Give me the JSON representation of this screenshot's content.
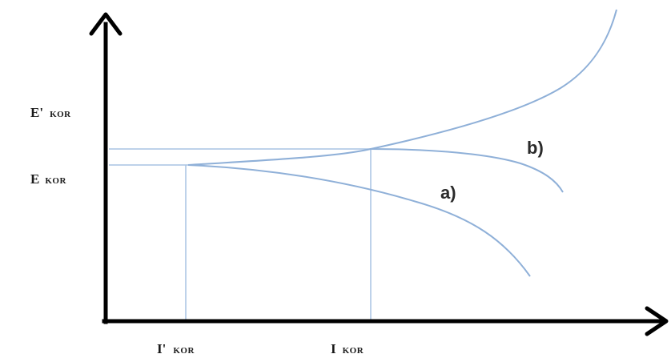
{
  "labels": {
    "e_kor_prime": {
      "main": "E'",
      "sub": "KOR"
    },
    "e_kor": {
      "main": "E",
      "sub": "KOR"
    },
    "i_kor_prime": {
      "main": "I'",
      "sub": "KOR"
    },
    "i_kor": {
      "main": "I",
      "sub": "KOR"
    },
    "curve_a": "a)",
    "curve_b": "b)"
  },
  "colors": {
    "axis": "#000000",
    "curve": "#8fb0d8",
    "guide": "#a9c3e3"
  }
}
